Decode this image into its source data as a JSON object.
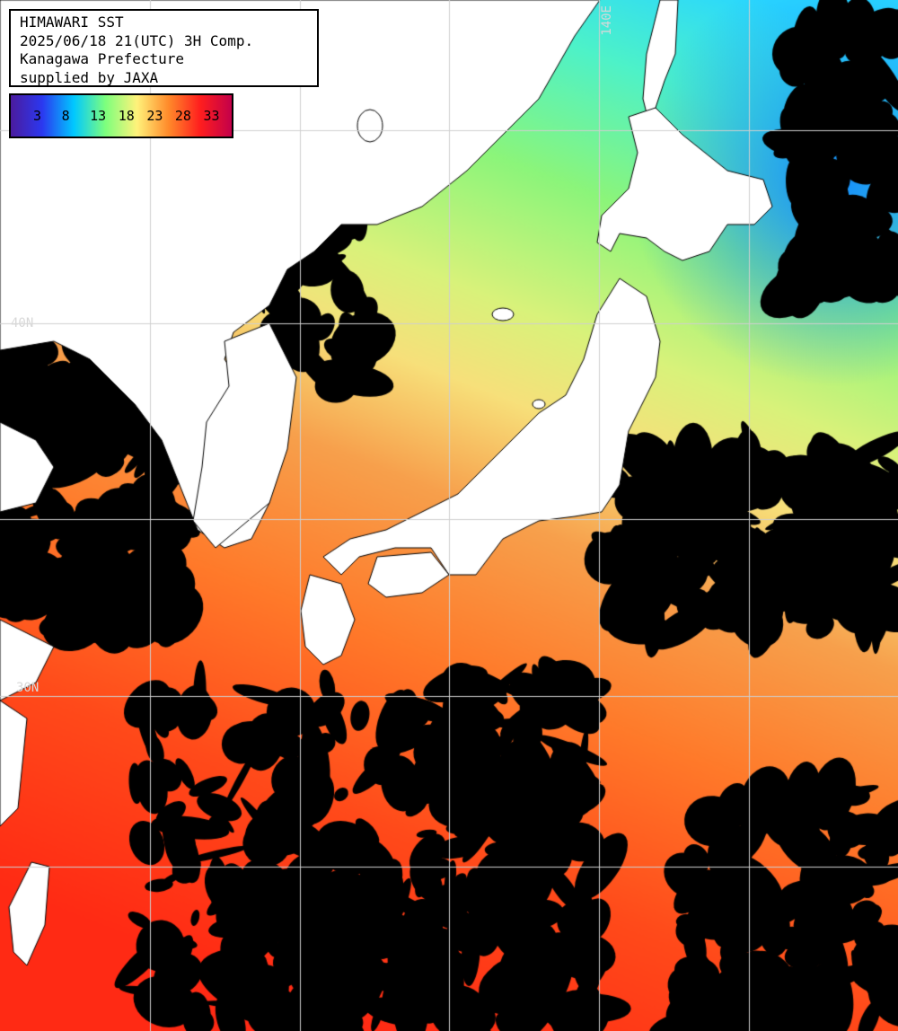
{
  "title": {
    "line1": "HIMAWARI SST",
    "line2": "2025/06/18 21(UTC) 3H Comp.",
    "line3": "Kanagawa Prefecture",
    "line4": "supplied by JAXA"
  },
  "legend": {
    "ticks": [
      "3",
      "8",
      "13",
      "18",
      "23",
      "28",
      "33"
    ],
    "colors": [
      "#4b1b9e",
      "#2b38f0",
      "#00c8ff",
      "#7dff7d",
      "#fff27a",
      "#ff8a2a",
      "#ff1e1e",
      "#c3004a"
    ]
  },
  "grid_labels": {
    "lat_40": "40N",
    "lat_30": "30N",
    "lon_140": "140E"
  },
  "colors": {
    "land": "#ffffff",
    "cloud": "#000000",
    "gridline": "#cfcfcf"
  }
}
